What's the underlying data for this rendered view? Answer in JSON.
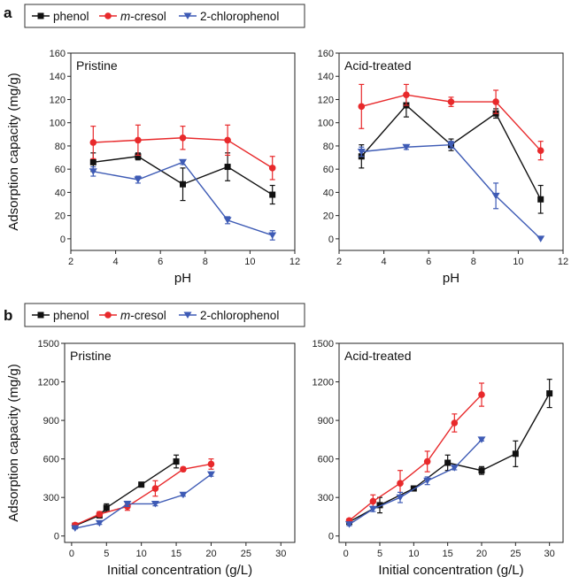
{
  "panel_letters": [
    "a",
    "b"
  ],
  "legend": {
    "phenol": "phenol",
    "mcresol_italic": "m",
    "mcresol_rest": "-cresol",
    "chlorophenol": "2-chlorophenol"
  },
  "colors": {
    "phenol": "#111111",
    "mcresol": "#e8292b",
    "chlorophenol": "#3e5bb5"
  },
  "chart_data": [
    {
      "type": "line",
      "panel": "a",
      "title": "Pristine",
      "xlabel": "pH",
      "ylabel": "Adsorption capacity (mg/g)",
      "xlim": [
        2,
        12
      ],
      "ylim": [
        -10,
        160
      ],
      "xticks": [
        2,
        4,
        6,
        8,
        10,
        12
      ],
      "yticks": [
        0,
        20,
        40,
        60,
        80,
        100,
        120,
        140,
        160
      ],
      "series": [
        {
          "name": "phenol",
          "marker": "square",
          "x": [
            3,
            5,
            7,
            9,
            11
          ],
          "y": [
            66,
            71,
            47,
            62,
            38
          ],
          "err": [
            8,
            3,
            14,
            12,
            8
          ]
        },
        {
          "name": "m-cresol",
          "marker": "circle",
          "x": [
            3,
            5,
            7,
            9,
            11
          ],
          "y": [
            83,
            85,
            87,
            85,
            61
          ],
          "err": [
            14,
            13,
            10,
            13,
            10
          ]
        },
        {
          "name": "2-chlorophenol",
          "marker": "triangle",
          "x": [
            3,
            5,
            7,
            9,
            11
          ],
          "y": [
            58,
            51,
            66,
            16,
            3
          ],
          "err": [
            4,
            3,
            2,
            3,
            4
          ]
        }
      ]
    },
    {
      "type": "line",
      "panel": "a",
      "title": "Acid-treated",
      "xlabel": "pH",
      "ylabel": "",
      "xlim": [
        2,
        12
      ],
      "ylim": [
        -10,
        160
      ],
      "xticks": [
        2,
        4,
        6,
        8,
        10,
        12
      ],
      "yticks": [
        0,
        20,
        40,
        60,
        80,
        100,
        120,
        140,
        160
      ],
      "series": [
        {
          "name": "phenol",
          "marker": "square",
          "x": [
            3,
            5,
            7,
            9,
            11
          ],
          "y": [
            71,
            115,
            81,
            108,
            34
          ],
          "err": [
            10,
            10,
            5,
            4,
            12
          ]
        },
        {
          "name": "m-cresol",
          "marker": "circle",
          "x": [
            3,
            5,
            7,
            9,
            11
          ],
          "y": [
            114,
            124,
            118,
            118,
            76
          ],
          "err": [
            19,
            9,
            4,
            10,
            8
          ]
        },
        {
          "name": "2-chlorophenol",
          "marker": "triangle",
          "x": [
            3,
            5,
            7,
            9,
            11
          ],
          "y": [
            75,
            79,
            81,
            37,
            0
          ],
          "err": [
            4,
            2,
            3,
            11,
            0
          ]
        }
      ]
    },
    {
      "type": "line",
      "panel": "b",
      "title": "Pristine",
      "xlabel": "Initial concentration (g/L)",
      "ylabel": "Adsorption capacity (mg/g)",
      "xlim": [
        -1,
        32
      ],
      "ylim": [
        -50,
        1500
      ],
      "xticks": [
        0,
        5,
        10,
        15,
        20,
        25,
        30
      ],
      "yticks": [
        0,
        300,
        600,
        900,
        1200,
        1500
      ],
      "series": [
        {
          "name": "phenol",
          "marker": "square",
          "x": [
            0.5,
            4,
            5,
            10,
            15
          ],
          "y": [
            80,
            160,
            220,
            400,
            580
          ],
          "err": [
            10,
            20,
            30,
            10,
            50
          ]
        },
        {
          "name": "m-cresol",
          "marker": "circle",
          "x": [
            0.5,
            4,
            8,
            12,
            16,
            20
          ],
          "y": [
            85,
            170,
            230,
            370,
            520,
            560
          ],
          "err": [
            10,
            20,
            30,
            60,
            15,
            40
          ]
        },
        {
          "name": "2-chlorophenol",
          "marker": "triangle",
          "x": [
            0.5,
            4,
            8,
            12,
            16,
            20
          ],
          "y": [
            60,
            100,
            250,
            250,
            320,
            480
          ],
          "err": [
            5,
            10,
            20,
            15,
            10,
            15
          ]
        }
      ]
    },
    {
      "type": "line",
      "panel": "b",
      "title": "Acid-treated",
      "xlabel": "Initial concentration (g/L)",
      "ylabel": "",
      "xlim": [
        -1,
        32
      ],
      "ylim": [
        -50,
        1500
      ],
      "xticks": [
        0,
        5,
        10,
        15,
        20,
        25,
        30
      ],
      "yticks": [
        0,
        300,
        600,
        900,
        1200,
        1500
      ],
      "series": [
        {
          "name": "phenol",
          "marker": "square",
          "x": [
            0.5,
            5,
            10,
            15,
            20,
            25,
            30
          ],
          "y": [
            110,
            240,
            370,
            570,
            510,
            640,
            1110
          ],
          "err": [
            10,
            60,
            15,
            60,
            30,
            100,
            110
          ]
        },
        {
          "name": "m-cresol",
          "marker": "circle",
          "x": [
            0.5,
            4,
            8,
            12,
            16,
            20
          ],
          "y": [
            120,
            270,
            410,
            580,
            880,
            1100
          ],
          "err": [
            15,
            50,
            100,
            80,
            70,
            90
          ]
        },
        {
          "name": "2-chlorophenol",
          "marker": "triangle",
          "x": [
            0.5,
            4,
            8,
            12,
            16,
            20
          ],
          "y": [
            90,
            210,
            300,
            430,
            530,
            750
          ],
          "err": [
            10,
            20,
            40,
            30,
            15,
            10
          ]
        }
      ]
    }
  ]
}
